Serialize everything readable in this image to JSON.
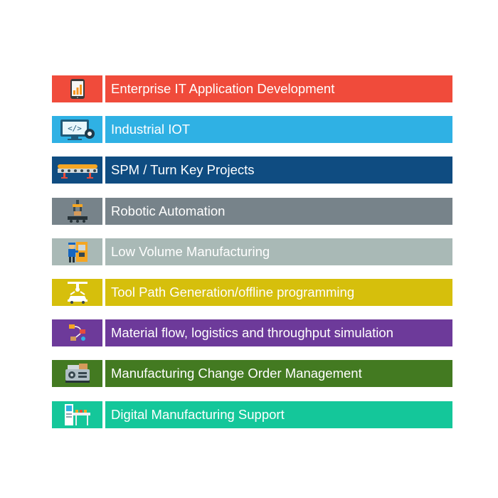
{
  "items": [
    {
      "label": "Enterprise IT Application Development",
      "color": "#f04b3b",
      "icon": "tablet-chart-icon"
    },
    {
      "label": "Industrial IOT",
      "color": "#2fb1e4",
      "icon": "monitor-code-gear-icon"
    },
    {
      "label": "SPM / Turn Key Projects",
      "color": "#0f4c81",
      "icon": "conveyor-belt-icon"
    },
    {
      "label": "Robotic Automation",
      "color": "#77838a",
      "icon": "robot-arm-assembly-icon"
    },
    {
      "label": "Low Volume Manufacturing",
      "color": "#a9b9b6",
      "icon": "worker-machine-icon"
    },
    {
      "label": "Tool Path Generation/offline programming",
      "color": "#d6bf0c",
      "icon": "robot-car-painting-icon"
    },
    {
      "label": "Material flow, logistics and throughput simulation",
      "color": "#6d3a9a",
      "icon": "logistics-flow-icon"
    },
    {
      "label": "Manufacturing Change Order Management",
      "color": "#437a21",
      "icon": "production-machine-icon"
    },
    {
      "label": "Digital Manufacturing Support",
      "color": "#14c79a",
      "icon": "control-panel-icon"
    }
  ]
}
